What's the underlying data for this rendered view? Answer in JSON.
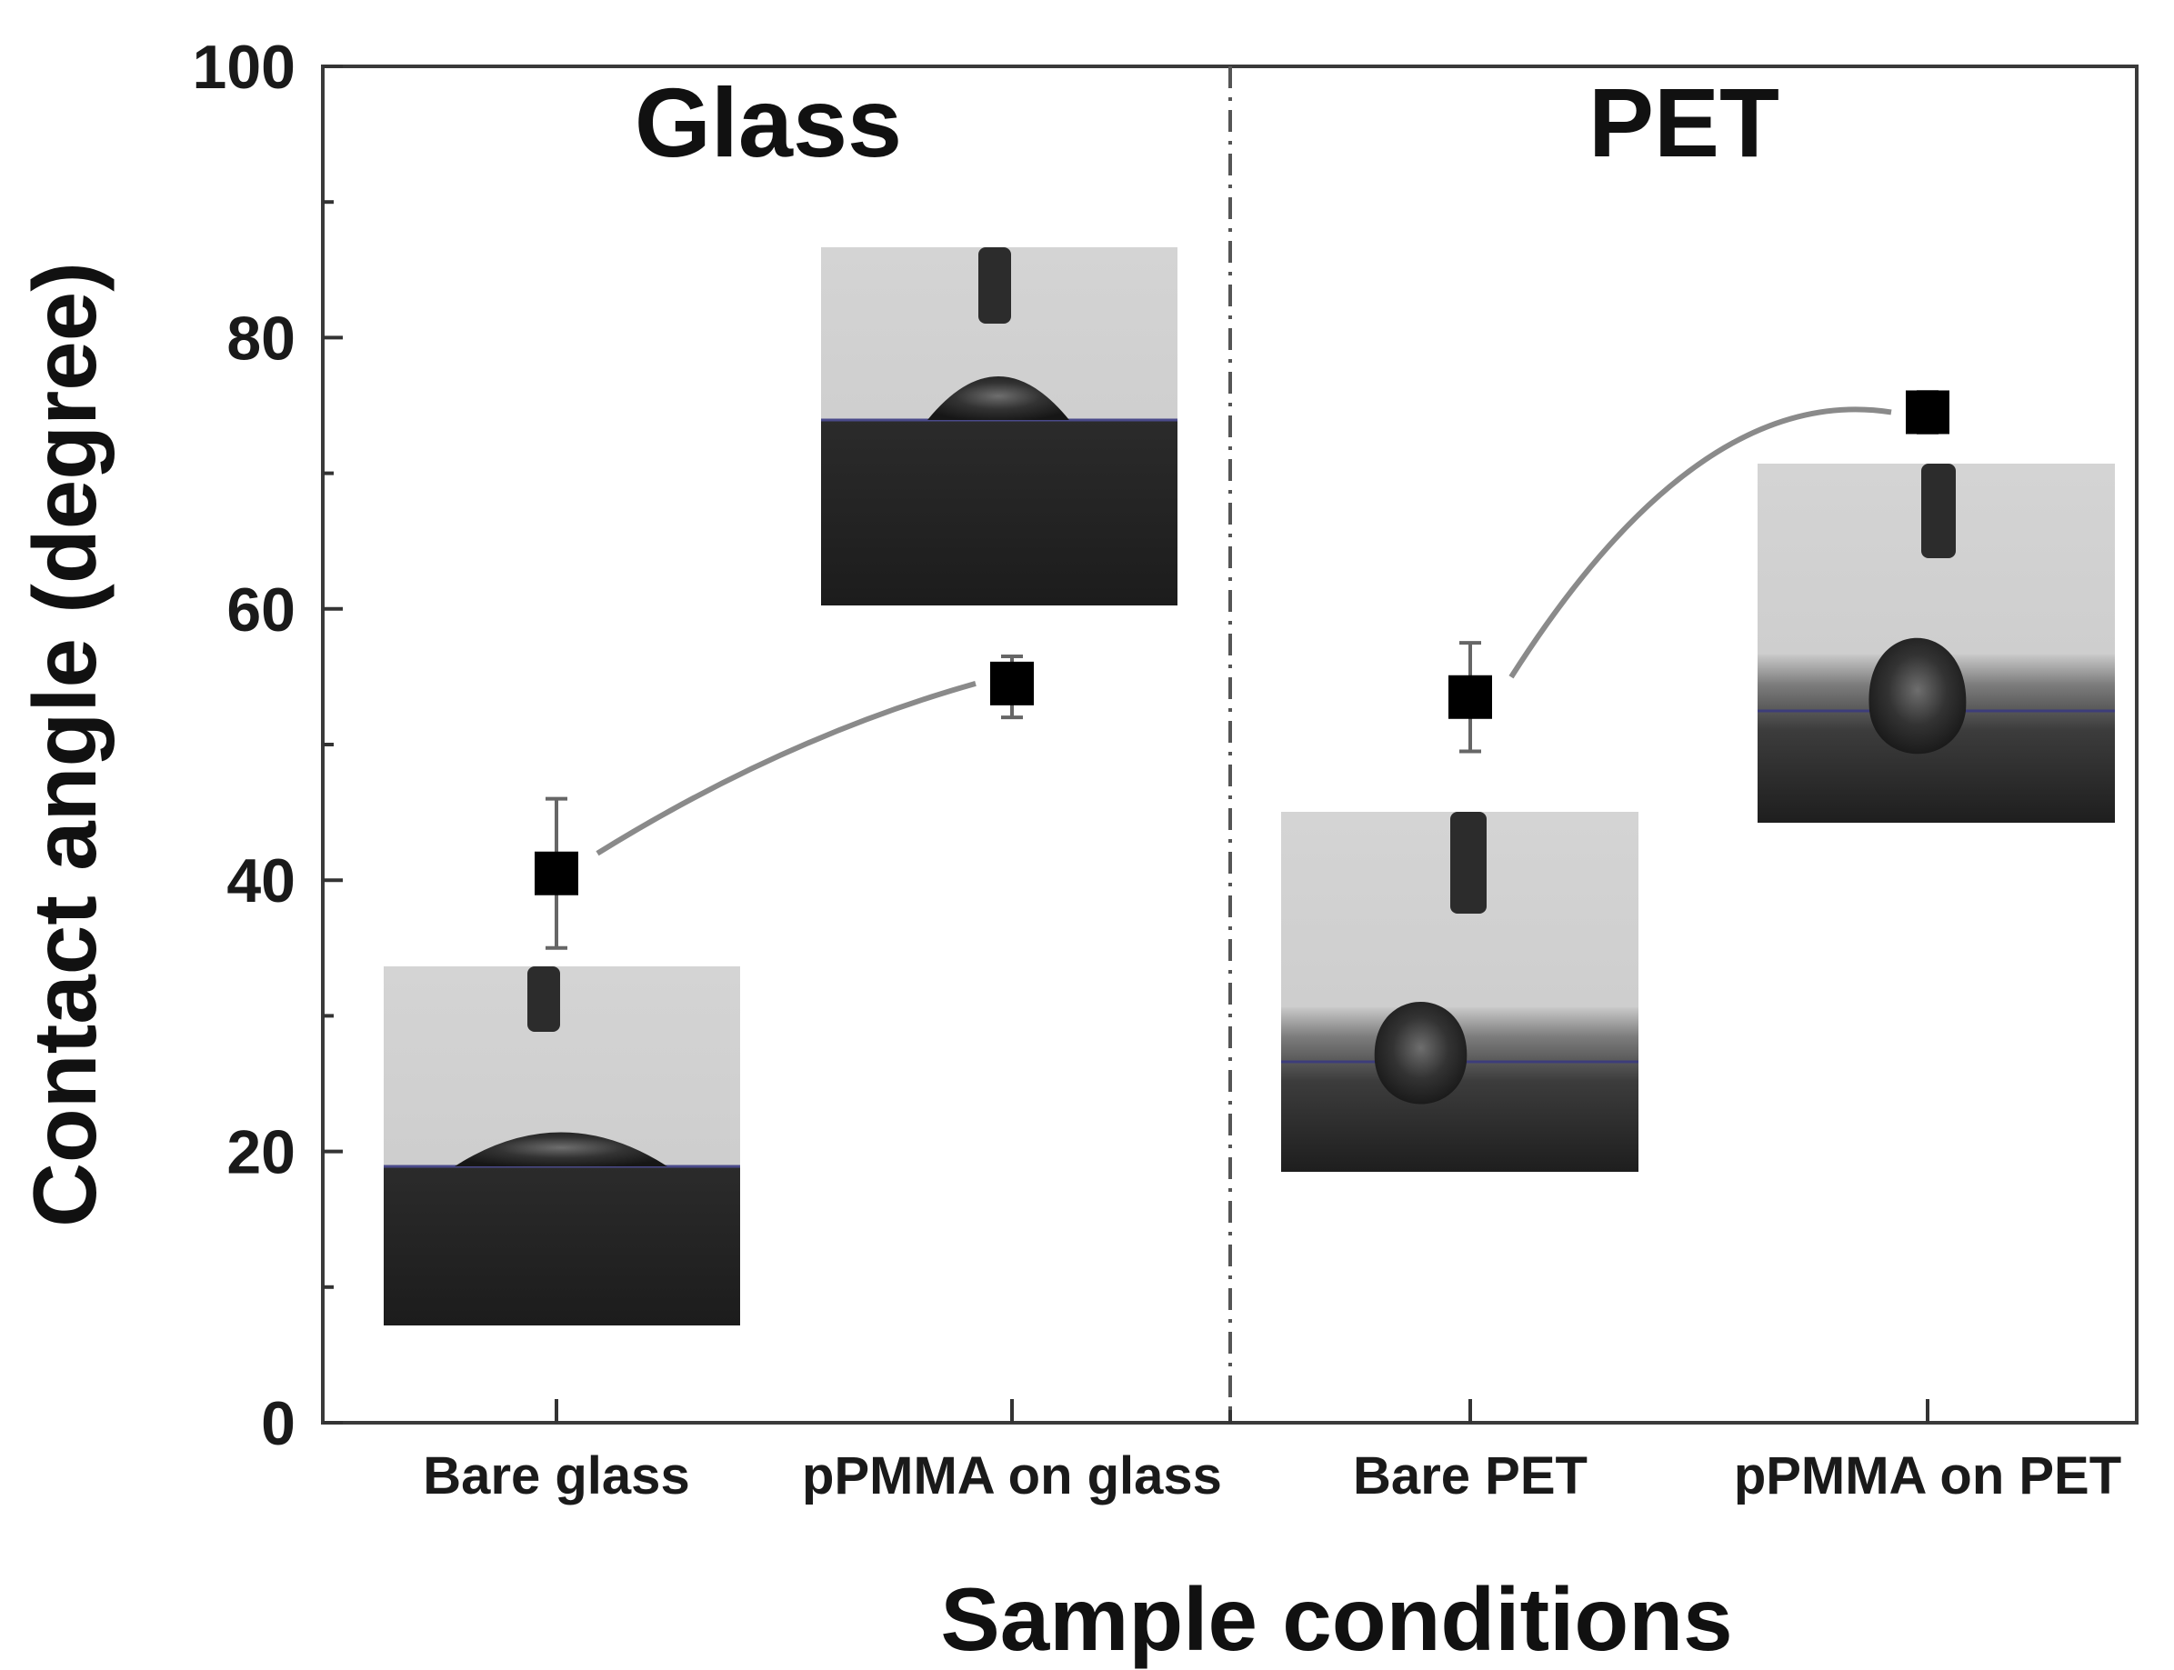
{
  "chart_data": {
    "type": "scatter",
    "title": "",
    "xlabel": "Sample conditions",
    "ylabel": "Contact angle (degree)",
    "ylim": [
      0,
      100
    ],
    "yticks": [
      0,
      20,
      40,
      60,
      80,
      100
    ],
    "categories": [
      "Bare glass",
      "pPMMA on glass",
      "Bare PET",
      "pPMMA on PET"
    ],
    "groups": [
      {
        "name": "Glass",
        "categories": [
          "Bare glass",
          "pPMMA on glass"
        ]
      },
      {
        "name": "PET",
        "categories": [
          "Bare PET",
          "pPMMA on PET"
        ]
      }
    ],
    "series": [
      {
        "name": "Contact angle",
        "marker": "square",
        "values": [
          40.5,
          54.5,
          53.5,
          74.5
        ],
        "errors_low": [
          5.5,
          2.5,
          4.0,
          1.5
        ],
        "errors_high": [
          5.5,
          2.0,
          4.0,
          1.5
        ]
      }
    ],
    "group_divider": "dash-dot vertical line between Glass and PET groups",
    "insets": [
      {
        "category": "Bare glass",
        "description": "water droplet image, low contact angle"
      },
      {
        "category": "pPMMA on glass",
        "description": "water droplet image"
      },
      {
        "category": "Bare PET",
        "description": "water droplet image"
      },
      {
        "category": "pPMMA on PET",
        "description": "water droplet image, high contact angle"
      }
    ],
    "colors": {
      "marker": "#000000",
      "connector": "#8a8a8a",
      "axis": "#333333"
    }
  }
}
